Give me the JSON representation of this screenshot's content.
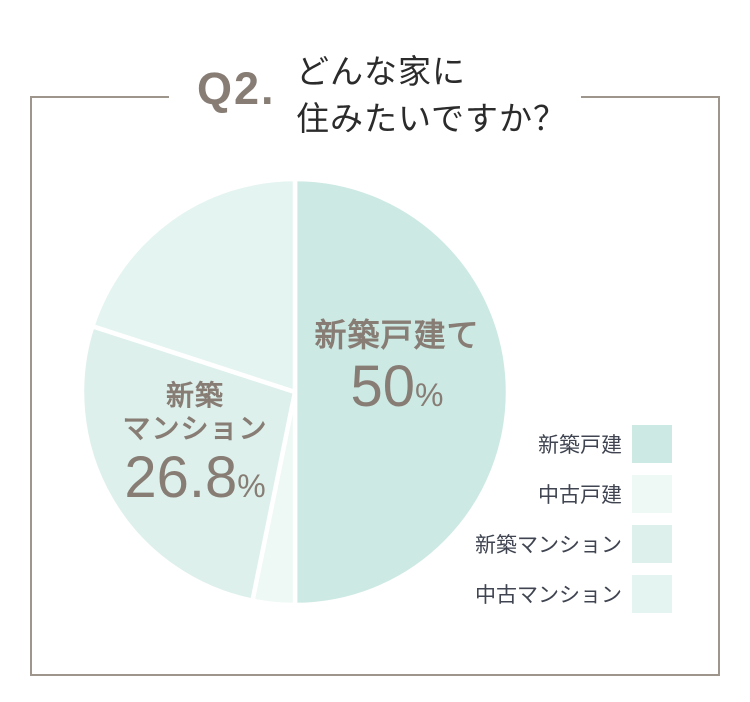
{
  "header": {
    "badge": "Q2.",
    "title_line1": "どんな家に",
    "title_line2": "住みたいですか？"
  },
  "chart_data": {
    "type": "pie",
    "title": "Q2. どんな家に住みたいですか？",
    "start_angle_deg": 0,
    "direction": "clockwise",
    "legend_position": "right",
    "slices": [
      {
        "label": "新築戸建",
        "value": 50,
        "value_shown_in_chart": "50%",
        "name_display": "新築戸建て",
        "value_display": "50",
        "unit": "%",
        "color": "#cde9e4"
      },
      {
        "label": "中古戸建",
        "value": 3.2,
        "value_shown_in_chart": null,
        "estimated": true,
        "color": "#eef8f5"
      },
      {
        "label": "新築マンション",
        "value": 26.8,
        "value_shown_in_chart": "26.8%",
        "name_line1": "新築",
        "name_line2": "マンション",
        "value_display": "26.8",
        "unit": "%",
        "color": "#ddf0ec"
      },
      {
        "label": "中古マンション",
        "value": 20,
        "value_shown_in_chart": null,
        "estimated": true,
        "color": "#e4f4f0"
      }
    ]
  },
  "legend": {
    "items": [
      {
        "label": "新築戸建",
        "color": "#cde9e4"
      },
      {
        "label": "中古戸建",
        "color": "#eef8f5"
      },
      {
        "label": "新築マンション",
        "color": "#ddf0ec"
      },
      {
        "label": "中古マンション",
        "color": "#e4f4f0"
      }
    ]
  },
  "colors": {
    "frame_border": "#9e958d",
    "badge_text": "#877d75",
    "title_text": "#2b2b2b",
    "pie_label_text": "#877d75",
    "legend_label_text": "#3f4450",
    "slice_separator": "#ffffff"
  }
}
